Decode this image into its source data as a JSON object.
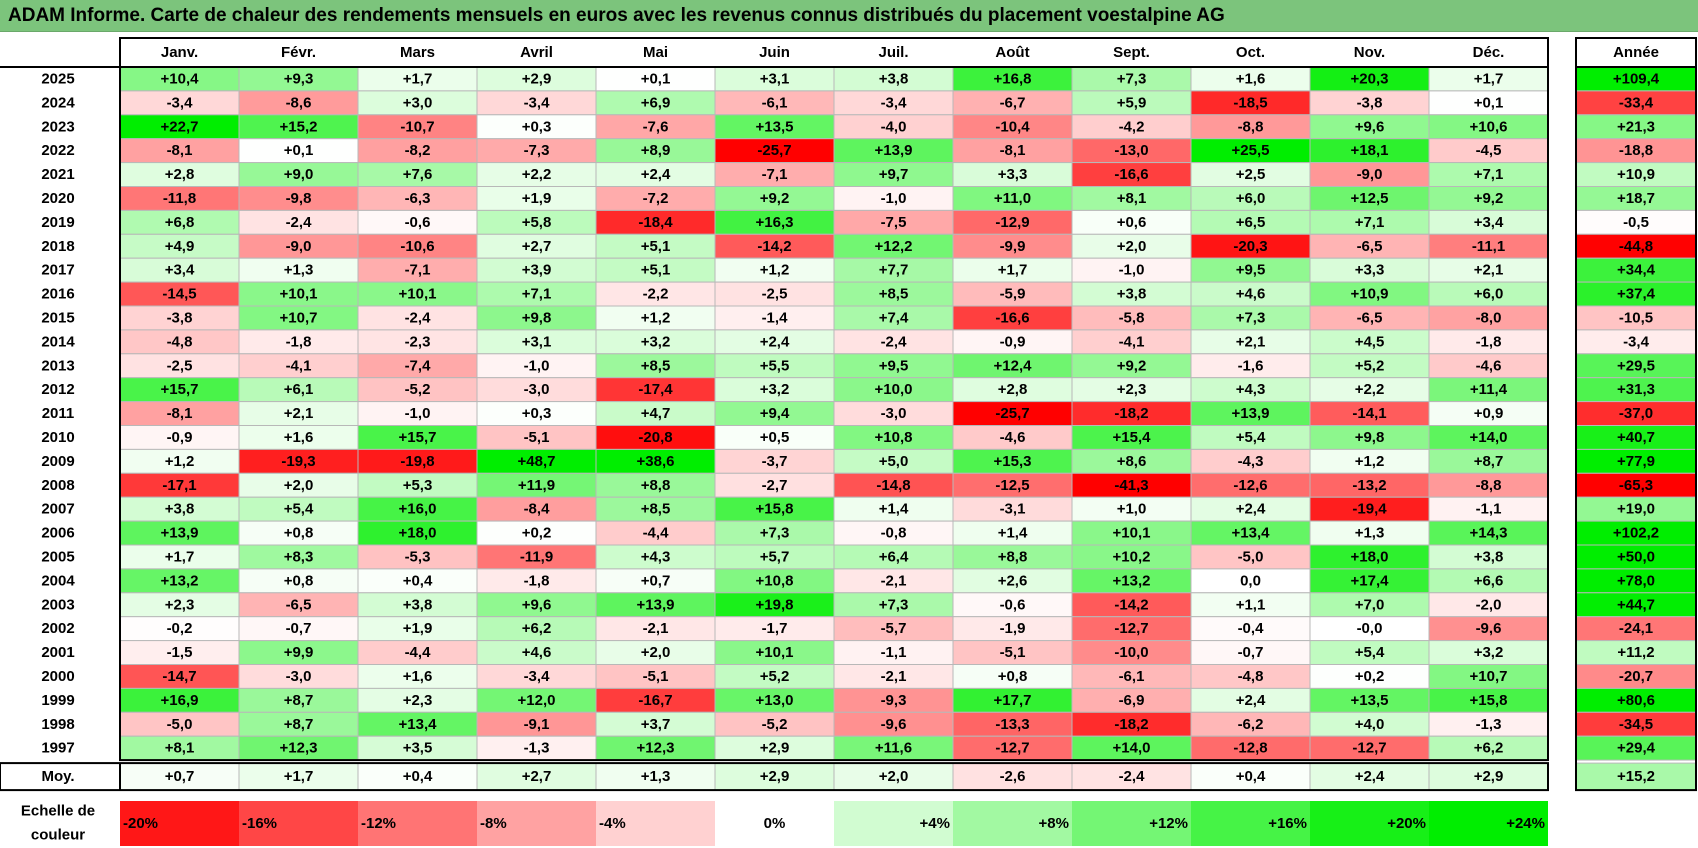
{
  "title": "ADAM Informe. Carte de chaleur des rendements mensuels en euros avec les revenus connus distribués du placement voestalpine AG",
  "chart_data": {
    "type": "heatmap",
    "columns": [
      "Janv.",
      "Févr.",
      "Mars",
      "Avril",
      "Mai",
      "Juin",
      "Juil.",
      "Août",
      "Sept.",
      "Oct.",
      "Nov.",
      "Déc."
    ],
    "year_column_label": "Année",
    "rows": [
      {
        "year": "2025",
        "values": [
          "+10,4",
          "+9,3",
          "+1,7",
          "+2,9",
          "+0,1",
          "+3,1",
          "+3,8",
          "+16,8",
          "+7,3",
          "+1,6",
          "+20,3",
          "+1,7"
        ],
        "annual": "+109,4"
      },
      {
        "year": "2024",
        "values": [
          "-3,4",
          "-8,6",
          "+3,0",
          "-3,4",
          "+6,9",
          "-6,1",
          "-3,4",
          "-6,7",
          "+5,9",
          "-18,5",
          "-3,8",
          "+0,1"
        ],
        "annual": "-33,4"
      },
      {
        "year": "2023",
        "values": [
          "+22,7",
          "+15,2",
          "-10,7",
          "+0,3",
          "-7,6",
          "+13,5",
          "-4,0",
          "-10,4",
          "-4,2",
          "-8,8",
          "+9,6",
          "+10,6"
        ],
        "annual": "+21,3"
      },
      {
        "year": "2022",
        "values": [
          "-8,1",
          "+0,1",
          "-8,2",
          "-7,3",
          "+8,9",
          "-25,7",
          "+13,9",
          "-8,1",
          "-13,0",
          "+25,5",
          "+18,1",
          "-4,5"
        ],
        "annual": "-18,8"
      },
      {
        "year": "2021",
        "values": [
          "+2,8",
          "+9,0",
          "+7,6",
          "+2,2",
          "+2,4",
          "-7,1",
          "+9,7",
          "+3,3",
          "-16,6",
          "+2,5",
          "-9,0",
          "+7,1"
        ],
        "annual": "+10,9"
      },
      {
        "year": "2020",
        "values": [
          "-11,8",
          "-9,8",
          "-6,3",
          "+1,9",
          "-7,2",
          "+9,2",
          "-1,0",
          "+11,0",
          "+8,1",
          "+6,0",
          "+12,5",
          "+9,2"
        ],
        "annual": "+18,7"
      },
      {
        "year": "2019",
        "values": [
          "+6,8",
          "-2,4",
          "-0,6",
          "+5,8",
          "-18,4",
          "+16,3",
          "-7,5",
          "-12,9",
          "+0,6",
          "+6,5",
          "+7,1",
          "+3,4"
        ],
        "annual": "-0,5"
      },
      {
        "year": "2018",
        "values": [
          "+4,9",
          "-9,0",
          "-10,6",
          "+2,7",
          "+5,1",
          "-14,2",
          "+12,2",
          "-9,9",
          "+2,0",
          "-20,3",
          "-6,5",
          "-11,1"
        ],
        "annual": "-44,8"
      },
      {
        "year": "2017",
        "values": [
          "+3,4",
          "+1,3",
          "-7,1",
          "+3,9",
          "+5,1",
          "+1,2",
          "+7,7",
          "+1,7",
          "-1,0",
          "+9,5",
          "+3,3",
          "+2,1"
        ],
        "annual": "+34,4"
      },
      {
        "year": "2016",
        "values": [
          "-14,5",
          "+10,1",
          "+10,1",
          "+7,1",
          "-2,2",
          "-2,5",
          "+8,5",
          "-5,9",
          "+3,8",
          "+4,6",
          "+10,9",
          "+6,0"
        ],
        "annual": "+37,4"
      },
      {
        "year": "2015",
        "values": [
          "-3,8",
          "+10,7",
          "-2,4",
          "+9,8",
          "+1,2",
          "-1,4",
          "+7,4",
          "-16,6",
          "-5,8",
          "+7,3",
          "-6,5",
          "-8,0"
        ],
        "annual": "-10,5"
      },
      {
        "year": "2014",
        "values": [
          "-4,8",
          "-1,8",
          "-2,3",
          "+3,1",
          "+3,2",
          "+2,4",
          "-2,4",
          "-0,9",
          "-4,1",
          "+2,1",
          "+4,5",
          "-1,8"
        ],
        "annual": "-3,4"
      },
      {
        "year": "2013",
        "values": [
          "-2,5",
          "-4,1",
          "-7,4",
          "-1,0",
          "+8,5",
          "+5,5",
          "+9,5",
          "+12,4",
          "+9,2",
          "-1,6",
          "+5,2",
          "-4,6"
        ],
        "annual": "+29,5"
      },
      {
        "year": "2012",
        "values": [
          "+15,7",
          "+6,1",
          "-5,2",
          "-3,0",
          "-17,4",
          "+3,2",
          "+10,0",
          "+2,8",
          "+2,3",
          "+4,3",
          "+2,2",
          "+11,4"
        ],
        "annual": "+31,3"
      },
      {
        "year": "2011",
        "values": [
          "-8,1",
          "+2,1",
          "-1,0",
          "+0,3",
          "+4,7",
          "+9,4",
          "-3,0",
          "-25,7",
          "-18,2",
          "+13,9",
          "-14,1",
          "+0,9"
        ],
        "annual": "-37,0"
      },
      {
        "year": "2010",
        "values": [
          "-0,9",
          "+1,6",
          "+15,7",
          "-5,1",
          "-20,8",
          "+0,5",
          "+10,8",
          "-4,6",
          "+15,4",
          "+5,4",
          "+9,8",
          "+14,0"
        ],
        "annual": "+40,7"
      },
      {
        "year": "2009",
        "values": [
          "+1,2",
          "-19,3",
          "-19,8",
          "+48,7",
          "+38,6",
          "-3,7",
          "+5,0",
          "+15,3",
          "+8,6",
          "-4,3",
          "+1,2",
          "+8,7"
        ],
        "annual": "+77,9"
      },
      {
        "year": "2008",
        "values": [
          "-17,1",
          "+2,0",
          "+5,3",
          "+11,9",
          "+8,8",
          "-2,7",
          "-14,8",
          "-12,5",
          "-41,3",
          "-12,6",
          "-13,2",
          "-8,8"
        ],
        "annual": "-65,3"
      },
      {
        "year": "2007",
        "values": [
          "+3,8",
          "+5,4",
          "+16,0",
          "-8,4",
          "+8,5",
          "+15,8",
          "+1,4",
          "-3,1",
          "+1,0",
          "+2,4",
          "-19,4",
          "-1,1"
        ],
        "annual": "+19,0"
      },
      {
        "year": "2006",
        "values": [
          "+13,9",
          "+0,8",
          "+18,0",
          "+0,2",
          "-4,4",
          "+7,3",
          "-0,8",
          "+1,4",
          "+10,1",
          "+13,4",
          "+1,3",
          "+14,3"
        ],
        "annual": "+102,2"
      },
      {
        "year": "2005",
        "values": [
          "+1,7",
          "+8,3",
          "-5,3",
          "-11,9",
          "+4,3",
          "+5,7",
          "+6,4",
          "+8,8",
          "+10,2",
          "-5,0",
          "+18,0",
          "+3,8"
        ],
        "annual": "+50,0"
      },
      {
        "year": "2004",
        "values": [
          "+13,2",
          "+0,8",
          "+0,4",
          "-1,8",
          "+0,7",
          "+10,8",
          "-2,1",
          "+2,6",
          "+13,2",
          "0,0",
          "+17,4",
          "+6,6"
        ],
        "annual": "+78,0"
      },
      {
        "year": "2003",
        "values": [
          "+2,3",
          "-6,5",
          "+3,8",
          "+9,6",
          "+13,9",
          "+19,8",
          "+7,3",
          "-0,6",
          "-14,2",
          "+1,1",
          "+7,0",
          "-2,0"
        ],
        "annual": "+44,7"
      },
      {
        "year": "2002",
        "values": [
          "-0,2",
          "-0,7",
          "+1,9",
          "+6,2",
          "-2,1",
          "-1,7",
          "-5,7",
          "-1,9",
          "-12,7",
          "-0,4",
          "-0,0",
          "-9,6"
        ],
        "annual": "-24,1"
      },
      {
        "year": "2001",
        "values": [
          "-1,5",
          "+9,9",
          "-4,4",
          "+4,6",
          "+2,0",
          "+10,1",
          "-1,1",
          "-5,1",
          "-10,0",
          "-0,7",
          "+5,4",
          "+3,2"
        ],
        "annual": "+11,2"
      },
      {
        "year": "2000",
        "values": [
          "-14,7",
          "-3,0",
          "+1,6",
          "-3,4",
          "-5,1",
          "+5,2",
          "-2,1",
          "+0,8",
          "-6,1",
          "-4,8",
          "+0,2",
          "+10,7"
        ],
        "annual": "-20,7"
      },
      {
        "year": "1999",
        "values": [
          "+16,9",
          "+8,7",
          "+2,3",
          "+12,0",
          "-16,7",
          "+13,0",
          "-9,3",
          "+17,7",
          "-6,9",
          "+2,4",
          "+13,5",
          "+15,8"
        ],
        "annual": "+80,6"
      },
      {
        "year": "1998",
        "values": [
          "-5,0",
          "+8,7",
          "+13,4",
          "-9,1",
          "+3,7",
          "-5,2",
          "-9,6",
          "-13,3",
          "-18,2",
          "-6,2",
          "+4,0",
          "-1,3"
        ],
        "annual": "-34,5"
      },
      {
        "year": "1997",
        "values": [
          "+8,1",
          "+12,3",
          "+3,5",
          "-1,3",
          "+12,3",
          "+2,9",
          "+11,6",
          "-12,7",
          "+14,0",
          "-12,8",
          "-12,7",
          "+6,2"
        ],
        "annual": "+29,4"
      }
    ],
    "average": {
      "label": "Moy.",
      "values": [
        "+0,7",
        "+1,7",
        "+0,4",
        "+2,7",
        "+1,3",
        "+2,9",
        "+2,0",
        "-2,6",
        "-2,4",
        "+0,4",
        "+2,4",
        "+2,9"
      ],
      "annual": "+15,2"
    },
    "scale": {
      "label_line1": "Echelle de",
      "label_line2": "couleur",
      "steps": [
        {
          "label": "-20%",
          "value": -20
        },
        {
          "label": "-16%",
          "value": -16
        },
        {
          "label": "-12%",
          "value": -12
        },
        {
          "label": "-8%",
          "value": -8
        },
        {
          "label": "-4%",
          "value": -4
        },
        {
          "label": "0%",
          "value": 0
        },
        {
          "label": "+4%",
          "value": 4
        },
        {
          "label": "+8%",
          "value": 8
        },
        {
          "label": "+12%",
          "value": 12
        },
        {
          "label": "+16%",
          "value": 16
        },
        {
          "label": "+20%",
          "value": 20
        },
        {
          "label": "+24%",
          "value": 24
        }
      ]
    },
    "colors": {
      "negative_max": "#ff0000",
      "neutral": "#ffffff",
      "positive_max": "#00ee00",
      "title_bar": "#7cc47c",
      "grid": "#b8b8b8"
    }
  }
}
